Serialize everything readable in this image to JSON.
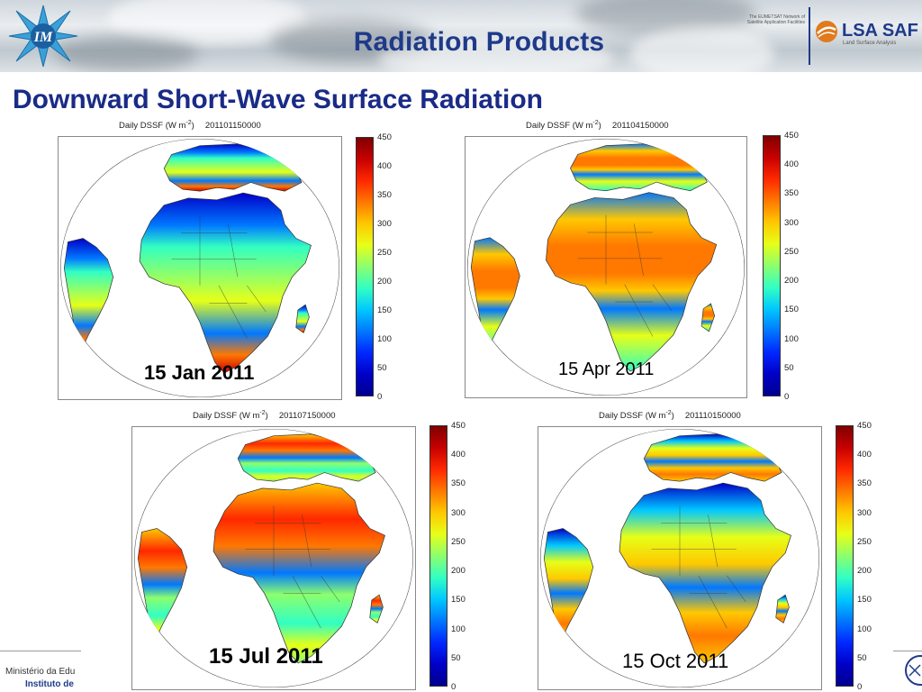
{
  "header": {
    "title": "Radiation Products",
    "partner_note": "The EUMETSAT Network of Satellite Application Facilities",
    "lsa_logo_text": "LSA SAF",
    "lsa_logo_subtitle": "Land Surface Analysis"
  },
  "slide": {
    "title": "Downward Short-Wave Surface Radiation"
  },
  "colors": {
    "title_blue": "#1a2b86",
    "banner_title_blue": "#1f3a8a",
    "lsa_orange": "#e07a1f"
  },
  "colorbar_ticks": [
    "450",
    "400",
    "350",
    "300",
    "250",
    "200",
    "150",
    "100",
    "50",
    "0"
  ],
  "panels": [
    {
      "id": "jan",
      "header_label": "Daily DSSF (W m",
      "header_sup": "-2",
      "header_close": ")",
      "header_time": "201101150000",
      "date": "15 Jan 2011",
      "date_bold": true,
      "season": "jan"
    },
    {
      "id": "apr",
      "header_label": "Daily DSSF (W m",
      "header_sup": "-2",
      "header_close": ")",
      "header_time": "201104150000",
      "date": "15 Apr 2011",
      "date_bold": false,
      "season": "apr"
    },
    {
      "id": "jul",
      "header_label": "Daily DSSF (W m",
      "header_sup": "-2",
      "header_close": ")",
      "header_time": "201107150000",
      "date": "15 Jul 2011",
      "date_bold": true,
      "season": "jul"
    },
    {
      "id": "oct",
      "header_label": "Daily DSSF (W m",
      "header_sup": "-2",
      "header_close": ")",
      "header_time": "201110150000",
      "date": "15 Oct 2011",
      "date_bold": false,
      "season": "oct"
    }
  ],
  "footer": {
    "line1": "Ministério da Edu",
    "line2": "Instituto de"
  }
}
